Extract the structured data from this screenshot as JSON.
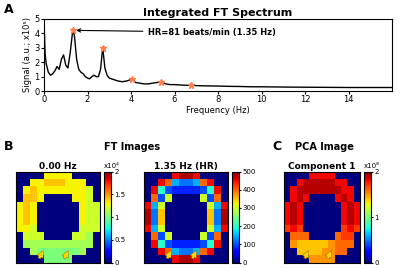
{
  "chart_data": [
    {
      "type": "line",
      "panel": "A",
      "title": "Integrated FT Spectrum",
      "x_label": "Frequency (Hz)",
      "y_label": "Signal (a.u.; x10⁵)",
      "x": [
        0,
        0.05,
        0.1,
        0.2,
        0.3,
        0.4,
        0.5,
        0.6,
        0.7,
        0.8,
        0.9,
        1.0,
        1.1,
        1.2,
        1.3,
        1.35,
        1.4,
        1.5,
        1.6,
        1.7,
        1.8,
        1.9,
        2.0,
        2.1,
        2.2,
        2.3,
        2.4,
        2.5,
        2.6,
        2.7,
        2.8,
        2.9,
        3.0,
        3.2,
        3.4,
        3.6,
        3.8,
        4.0,
        4.05,
        4.2,
        4.4,
        4.6,
        4.8,
        5.0,
        5.2,
        5.4,
        5.6,
        5.8,
        6.0,
        6.3,
        6.6,
        6.75,
        7.0,
        7.5,
        8.0,
        8.5,
        9.0,
        9.5,
        10,
        11,
        12,
        13,
        14,
        15,
        16
      ],
      "values": [
        4.9,
        2.6,
        1.9,
        1.3,
        1.1,
        1.2,
        1.4,
        1.7,
        1.5,
        2.2,
        2.5,
        1.8,
        1.6,
        2.6,
        3.9,
        4.2,
        3.8,
        2.2,
        1.5,
        1.3,
        1.2,
        1.0,
        0.9,
        0.85,
        1.0,
        1.1,
        1.0,
        1.0,
        1.5,
        3.0,
        1.6,
        1.1,
        0.9,
        0.8,
        0.7,
        0.65,
        0.7,
        0.8,
        0.85,
        0.6,
        0.55,
        0.5,
        0.5,
        0.55,
        0.6,
        0.62,
        0.5,
        0.45,
        0.45,
        0.42,
        0.4,
        0.42,
        0.38,
        0.36,
        0.35,
        0.33,
        0.32,
        0.3,
        0.3,
        0.28,
        0.27,
        0.26,
        0.25,
        0.25,
        0.25
      ],
      "color": "#000000",
      "peaks": {
        "x": [
          1.35,
          2.7,
          4.05,
          5.4,
          6.75
        ],
        "values": [
          4.2,
          3.0,
          0.85,
          0.62,
          0.42
        ],
        "color": "#ff7f50",
        "marker": "*"
      },
      "annotation": {
        "text": "HR=81 beats/min (1.35 Hz)",
        "x": 1.35,
        "y": 4.2
      },
      "xlim": [
        0,
        16
      ],
      "xticks": [
        0,
        2,
        4,
        6,
        8,
        10,
        12,
        14
      ],
      "ylim": [
        0,
        5
      ],
      "yticks": [
        0,
        1,
        2,
        3,
        4,
        5
      ],
      "grid": false
    },
    {
      "type": "heatmap",
      "panel": "B",
      "group_title": "FT Images",
      "title": "0.00 Hz",
      "tick_labels": false,
      "cells": [
        [
          0,
          0,
          0,
          0,
          1.3,
          1.3,
          1.3,
          1.3,
          0,
          0,
          0,
          0
        ],
        [
          0,
          0,
          1.3,
          1.3,
          1.4,
          1.4,
          1.4,
          1.3,
          1.3,
          1.3,
          0,
          0
        ],
        [
          0,
          1.3,
          1.4,
          1.3,
          1.3,
          1.3,
          1.3,
          1.3,
          1.3,
          1.3,
          1.2,
          0
        ],
        [
          0,
          1.4,
          1.4,
          1.3,
          0,
          0,
          0,
          0,
          1.3,
          1.3,
          1.2,
          0
        ],
        [
          1.3,
          1.4,
          1.3,
          0,
          0,
          0,
          0,
          0,
          0,
          1.3,
          1.2,
          1.2
        ],
        [
          1.3,
          1.4,
          1.3,
          0,
          0,
          0,
          0,
          0,
          0,
          1.3,
          1.2,
          1.2
        ],
        [
          1.3,
          1.4,
          1.3,
          0,
          0,
          0,
          0,
          0,
          0,
          1.3,
          1.2,
          1.2
        ],
        [
          1.3,
          1.3,
          1.2,
          0,
          0,
          0,
          0,
          0,
          0,
          1.2,
          1.2,
          1.2
        ],
        [
          0,
          1.2,
          1.2,
          1.2,
          0,
          0,
          0,
          0,
          1.2,
          1.2,
          1.1,
          0
        ],
        [
          0,
          1.1,
          1.1,
          1.1,
          1.1,
          1.1,
          1.1,
          1.1,
          1.1,
          1.1,
          1.1,
          0
        ],
        [
          0,
          0,
          1.1,
          1.0,
          1.0,
          1.0,
          1.0,
          1.0,
          1.0,
          1.1,
          0,
          0
        ],
        [
          0,
          0,
          0,
          0,
          1.0,
          1.0,
          1.0,
          1.0,
          0,
          0,
          0,
          0
        ]
      ],
      "colorbar": {
        "range": [
          0,
          2
        ],
        "ticks": [
          0,
          0.5,
          1,
          1.5,
          2
        ],
        "multiplier": "x10⁴"
      }
    },
    {
      "type": "heatmap",
      "title": "1.35 Hz (HR)",
      "tick_labels": false,
      "cells": [
        [
          0,
          0,
          0,
          0,
          450,
          480,
          480,
          450,
          0,
          0,
          0,
          0
        ],
        [
          0,
          0,
          450,
          400,
          150,
          120,
          120,
          150,
          400,
          450,
          0,
          0
        ],
        [
          0,
          450,
          200,
          100,
          80,
          80,
          80,
          80,
          100,
          200,
          450,
          0
        ],
        [
          0,
          400,
          100,
          300,
          0,
          0,
          0,
          0,
          300,
          100,
          400,
          0
        ],
        [
          450,
          150,
          300,
          0,
          0,
          0,
          0,
          0,
          0,
          300,
          150,
          450
        ],
        [
          480,
          120,
          350,
          0,
          0,
          0,
          0,
          0,
          0,
          350,
          120,
          480
        ],
        [
          480,
          120,
          350,
          0,
          0,
          0,
          0,
          0,
          0,
          350,
          120,
          480
        ],
        [
          450,
          150,
          300,
          0,
          0,
          0,
          0,
          0,
          0,
          300,
          150,
          450
        ],
        [
          0,
          400,
          100,
          300,
          0,
          0,
          0,
          0,
          300,
          100,
          400,
          0
        ],
        [
          0,
          450,
          200,
          100,
          80,
          80,
          80,
          80,
          100,
          200,
          450,
          0
        ],
        [
          0,
          0,
          450,
          400,
          150,
          120,
          120,
          150,
          400,
          450,
          0,
          0
        ],
        [
          0,
          0,
          0,
          0,
          450,
          480,
          480,
          450,
          0,
          0,
          0,
          0
        ]
      ],
      "colorbar": {
        "range": [
          0,
          500
        ],
        "ticks": [
          0,
          100,
          200,
          300,
          400,
          500
        ]
      }
    },
    {
      "type": "heatmap",
      "panel": "C",
      "group_title": "PCA Image",
      "title": "Component 1",
      "tick_labels": false,
      "cells": [
        [
          0,
          0,
          0,
          0,
          1.8,
          1.8,
          1.8,
          1.8,
          0,
          0,
          0,
          0
        ],
        [
          0,
          0,
          1.8,
          1.9,
          1.9,
          1.9,
          1.9,
          1.9,
          1.8,
          1.8,
          0,
          0
        ],
        [
          0,
          1.8,
          1.9,
          1.9,
          1.9,
          1.9,
          1.9,
          1.9,
          1.9,
          1.8,
          1.8,
          0
        ],
        [
          0,
          1.8,
          1.9,
          1.8,
          0,
          0,
          0,
          0,
          1.8,
          1.9,
          1.8,
          0
        ],
        [
          1.8,
          1.9,
          1.8,
          0,
          0,
          0,
          0,
          0,
          0,
          1.8,
          1.9,
          1.8
        ],
        [
          1.8,
          1.9,
          1.8,
          0,
          0,
          0,
          0,
          0,
          0,
          1.8,
          1.9,
          1.8
        ],
        [
          1.8,
          1.9,
          1.8,
          0,
          0,
          0,
          0,
          0,
          0,
          1.8,
          1.9,
          1.8
        ],
        [
          1.7,
          1.8,
          1.7,
          0,
          0,
          0,
          0,
          0,
          0,
          1.7,
          1.8,
          1.7
        ],
        [
          0,
          1.6,
          1.6,
          1.6,
          0,
          0,
          0,
          0,
          1.6,
          1.7,
          1.7,
          0
        ],
        [
          0,
          1.5,
          1.4,
          1.4,
          1.4,
          1.4,
          1.4,
          1.5,
          1.6,
          1.6,
          1.6,
          0
        ],
        [
          0,
          0,
          1.4,
          1.4,
          1.4,
          1.4,
          1.5,
          1.5,
          1.6,
          1.6,
          0,
          0
        ],
        [
          0,
          0,
          0,
          0,
          1.5,
          1.5,
          1.5,
          1.5,
          0,
          0,
          0,
          0
        ]
      ],
      "colorbar": {
        "range": [
          0,
          2
        ],
        "ticks": [
          0,
          1,
          2
        ],
        "multiplier": "x10⁸"
      }
    }
  ]
}
